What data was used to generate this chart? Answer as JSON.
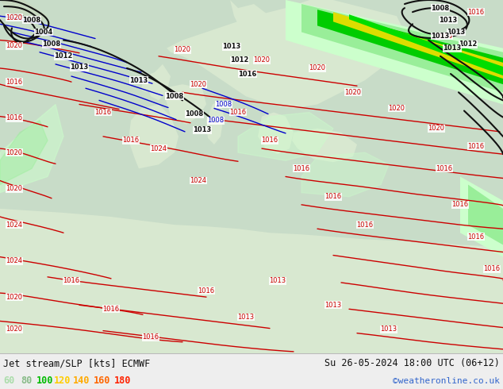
{
  "title_left": "Jet stream/SLP [kts] ECMWF",
  "title_right": "Su 26-05-2024 18:00 UTC (06+12)",
  "copyright": "©weatheronline.co.uk",
  "legend_values": [
    60,
    80,
    100,
    120,
    140,
    160,
    180
  ],
  "legend_colors": [
    "#aaddaa",
    "#88bb88",
    "#00bb00",
    "#ffcc00",
    "#ffaa00",
    "#ff6600",
    "#ff2200"
  ],
  "bg_color": "#e8f0e8",
  "map_bg_ocean": "#c8dcc8",
  "map_bg_land": "#d8e8d0",
  "figsize": [
    6.34,
    4.9
  ],
  "dpi": 100,
  "bottom_bar_color": "#eeeeee",
  "font_color": "#111111",
  "copyright_color": "#3366cc",
  "jet_colors": {
    "60": "#ccffcc",
    "80": "#99ee99",
    "100": "#00cc00",
    "120": "#dddd00",
    "140": "#ffaa00",
    "160": "#ff6600",
    "180": "#ff2200"
  },
  "red_isobar_color": "#cc0000",
  "blue_isobar_color": "#0000cc",
  "black_isobar_color": "#111111"
}
